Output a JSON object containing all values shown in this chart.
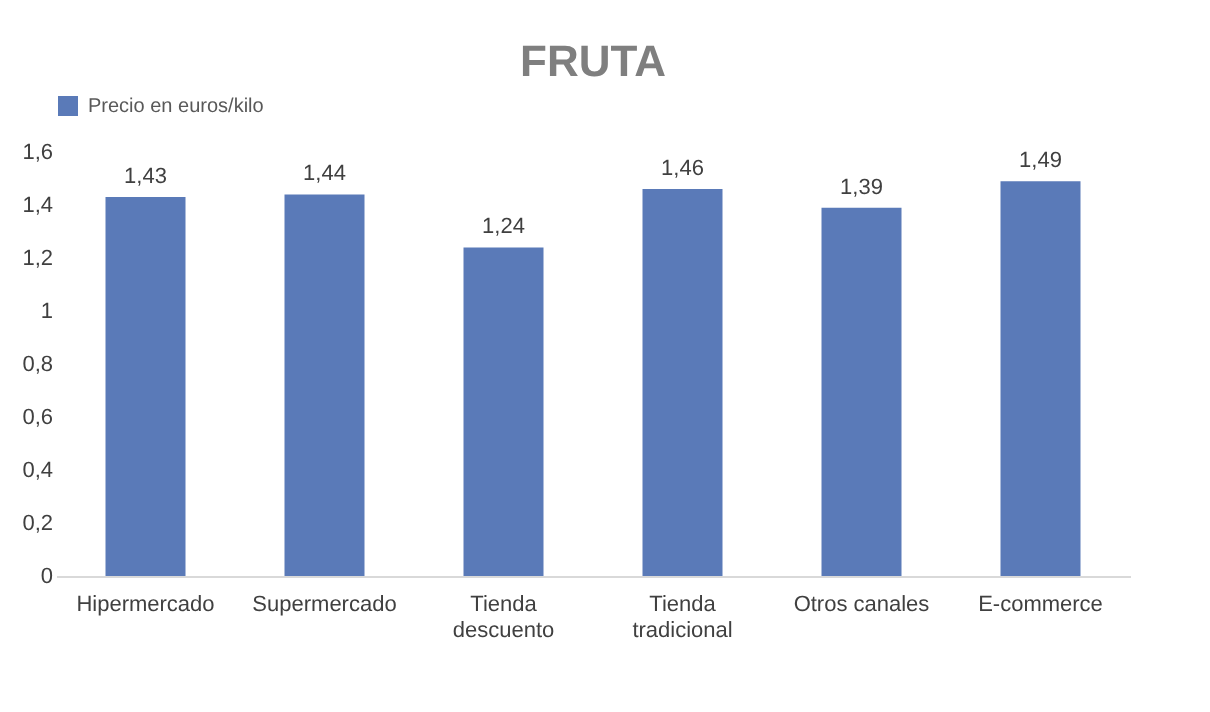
{
  "chart_data": {
    "type": "bar",
    "title": "FRUTA",
    "categories": [
      "Hipermercado",
      "Supermercado",
      "Tienda descuento",
      "Tienda tradicional",
      "Otros canales",
      "E-commerce"
    ],
    "series": [
      {
        "name": "Precio en euros/kilo",
        "color": "#5a7ab8",
        "values": [
          1.43,
          1.44,
          1.24,
          1.46,
          1.39,
          1.49
        ],
        "value_labels": [
          "1,43",
          "1,44",
          "1,24",
          "1,46",
          "1,39",
          "1,49"
        ]
      }
    ],
    "ylim": [
      0,
      1.6
    ],
    "yticks": [
      {
        "value": 0,
        "label": "0"
      },
      {
        "value": 0.2,
        "label": "0,2"
      },
      {
        "value": 0.4,
        "label": "0,4"
      },
      {
        "value": 0.6,
        "label": "0,6"
      },
      {
        "value": 0.8,
        "label": "0,8"
      },
      {
        "value": 1,
        "label": "1"
      },
      {
        "value": 1.2,
        "label": "1,2"
      },
      {
        "value": 1.4,
        "label": "1,4"
      },
      {
        "value": 1.6,
        "label": "1,6"
      }
    ],
    "grid": false,
    "legend": "top"
  }
}
